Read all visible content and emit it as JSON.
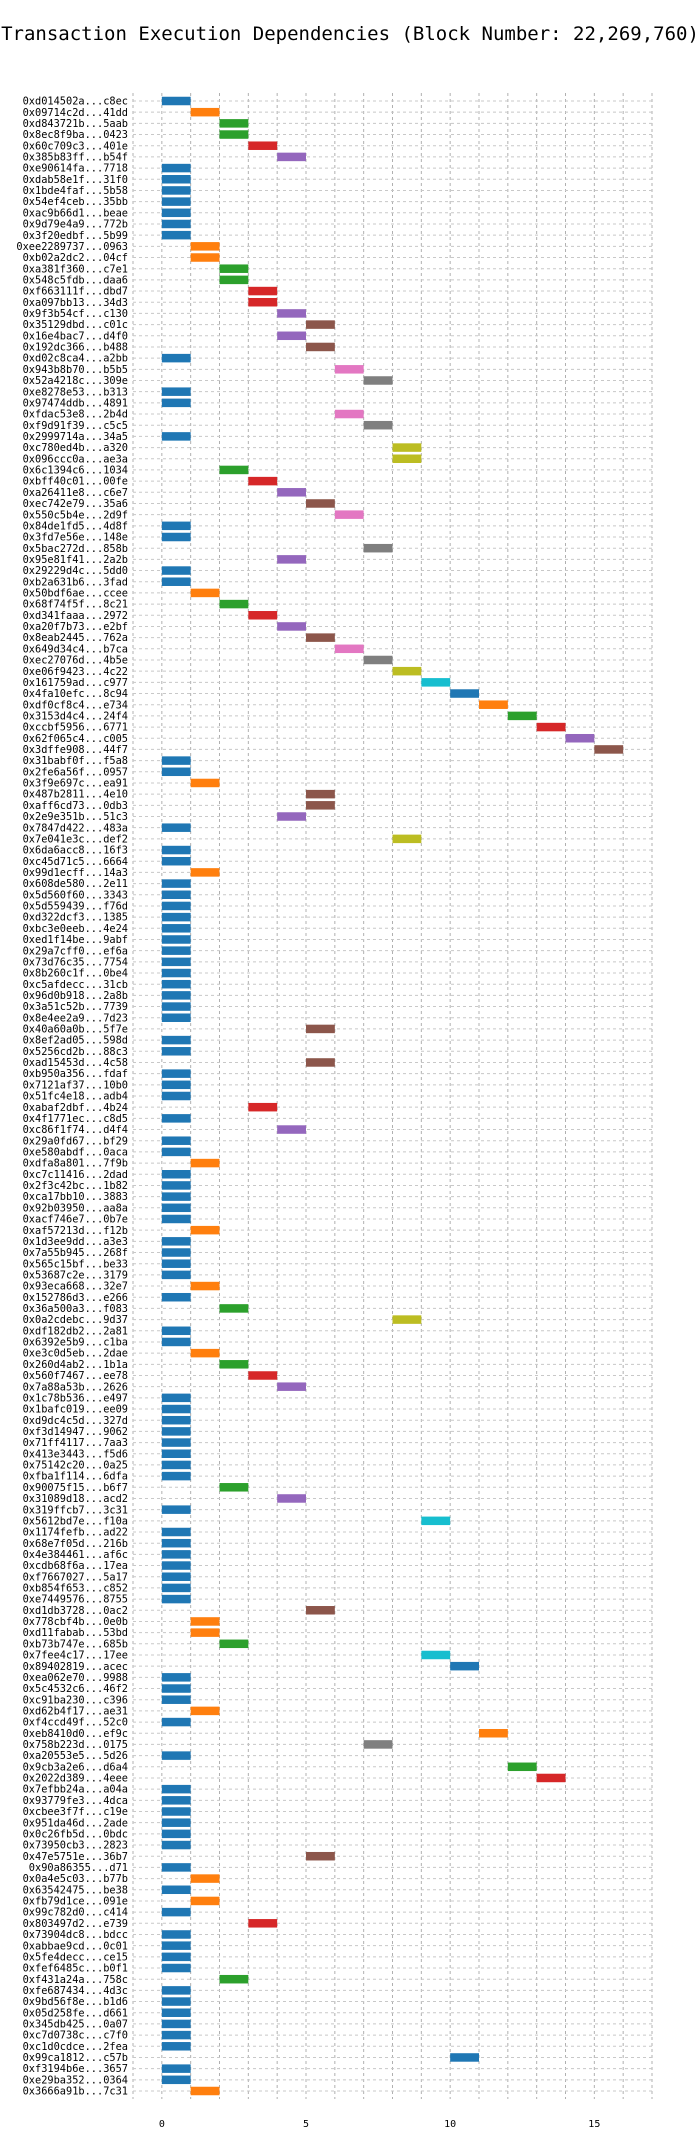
{
  "chart_data": {
    "type": "bar",
    "title": "Transaction Execution Dependencies (Block Number: 22,269,760)",
    "xlabel": "",
    "ylabel": "",
    "xlim": [
      -1,
      17
    ],
    "xticks": [
      0,
      5,
      10,
      15
    ],
    "grid": true,
    "palette": [
      "#1f77b4",
      "#ff7f0e",
      "#2ca02c",
      "#d62728",
      "#9467bd",
      "#8c564b",
      "#e377c2",
      "#7f7f7f",
      "#bcbd22",
      "#17becf"
    ],
    "transactions": [
      {
        "label": "0xd014502a...c8ec",
        "start": 0
      },
      {
        "label": "0x09714c2d...41dd",
        "start": 1
      },
      {
        "label": "0xd843721b...5aab",
        "start": 2
      },
      {
        "label": "0x8ec8f9ba...0423",
        "start": 2
      },
      {
        "label": "0x60c709c3...401e",
        "start": 3
      },
      {
        "label": "0x385b83ff...b54f",
        "start": 4
      },
      {
        "label": "0xe90614fa...7718",
        "start": 0
      },
      {
        "label": "0xdab58e1f...31f0",
        "start": 0
      },
      {
        "label": "0x1bde4faf...5b58",
        "start": 0
      },
      {
        "label": "0x54ef4ceb...35bb",
        "start": 0
      },
      {
        "label": "0xac9b66d1...beae",
        "start": 0
      },
      {
        "label": "0x9d79e4a9...772b",
        "start": 0
      },
      {
        "label": "0x3f20edbf...5b99",
        "start": 0
      },
      {
        "label": "0xee2289737...0963",
        "start": 1
      },
      {
        "label": "0xb02a2dc2...04cf",
        "start": 1
      },
      {
        "label": "0xa381f360...c7e1",
        "start": 2
      },
      {
        "label": "0x548c5fdb...daa6",
        "start": 2
      },
      {
        "label": "0xf663111f...dbd7",
        "start": 3
      },
      {
        "label": "0xa097bb13...34d3",
        "start": 3
      },
      {
        "label": "0x9f3b54cf...c130",
        "start": 4
      },
      {
        "label": "0x35129dbd...c01c",
        "start": 5
      },
      {
        "label": "0x16e4bac7...d4f0",
        "start": 4
      },
      {
        "label": "0x192dc366...b488",
        "start": 5
      },
      {
        "label": "0xd02c8ca4...a2bb",
        "start": 0
      },
      {
        "label": "0x943b8b70...b5b5",
        "start": 6
      },
      {
        "label": "0x52a4218c...309e",
        "start": 7
      },
      {
        "label": "0xe8278e53...b313",
        "start": 0
      },
      {
        "label": "0x97474ddb...4891",
        "start": 0
      },
      {
        "label": "0xfdac53e8...2b4d",
        "start": 6
      },
      {
        "label": "0xf9d91f39...c5c5",
        "start": 7
      },
      {
        "label": "0x2999714a...34a5",
        "start": 0
      },
      {
        "label": "0xc780ed4b...a320",
        "start": 8
      },
      {
        "label": "0x096ccc0a...ae3a",
        "start": 8
      },
      {
        "label": "0x6c1394c6...1034",
        "start": 2
      },
      {
        "label": "0xbff40c01...00fe",
        "start": 3
      },
      {
        "label": "0xa26411e8...c6e7",
        "start": 4
      },
      {
        "label": "0xec742e79...35a6",
        "start": 5
      },
      {
        "label": "0x550c5b4e...2d9f",
        "start": 6
      },
      {
        "label": "0x84de1fd5...4d8f",
        "start": 0
      },
      {
        "label": "0x3fd7e56e...148e",
        "start": 0
      },
      {
        "label": "0x5bac272d...858b",
        "start": 7
      },
      {
        "label": "0x95e81f41...2a2b",
        "start": 4
      },
      {
        "label": "0x29229d4c...5dd0",
        "start": 0
      },
      {
        "label": "0xb2a631b6...3fad",
        "start": 0
      },
      {
        "label": "0x50bdf6ae...ccee",
        "start": 1
      },
      {
        "label": "0x68f74f5f...8c21",
        "start": 2
      },
      {
        "label": "0xd341faaa...2972",
        "start": 3
      },
      {
        "label": "0xa20f7b73...e2bf",
        "start": 4
      },
      {
        "label": "0x8eab2445...762a",
        "start": 5
      },
      {
        "label": "0x649d34c4...b7ca",
        "start": 6
      },
      {
        "label": "0xec27076d...4b5e",
        "start": 7
      },
      {
        "label": "0xe06f9423...4c22",
        "start": 8
      },
      {
        "label": "0x161759ad...c977",
        "start": 9
      },
      {
        "label": "0x4fa10efc...8c94",
        "start": 10
      },
      {
        "label": "0xdf0cf8c4...e734",
        "start": 11
      },
      {
        "label": "0x3153d4c4...24f4",
        "start": 12
      },
      {
        "label": "0xccbf5956...6771",
        "start": 13
      },
      {
        "label": "0x62f065c4...c005",
        "start": 14
      },
      {
        "label": "0x3dffe908...44f7",
        "start": 15
      },
      {
        "label": "0x31babf0f...f5a8",
        "start": 0
      },
      {
        "label": "0x2fe6a56f...0957",
        "start": 0
      },
      {
        "label": "0x3f9e697c...ea91",
        "start": 1
      },
      {
        "label": "0x487b2811...4e10",
        "start": 5
      },
      {
        "label": "0xaff6cd73...0db3",
        "start": 5
      },
      {
        "label": "0x2e9e351b...51c3",
        "start": 4
      },
      {
        "label": "0x7847d422...483a",
        "start": 0
      },
      {
        "label": "0x7e041e3c...def2",
        "start": 8
      },
      {
        "label": "0x6da6acc8...16f3",
        "start": 0
      },
      {
        "label": "0xc45d71c5...6664",
        "start": 0
      },
      {
        "label": "0x99d1ecff...14a3",
        "start": 1
      },
      {
        "label": "0x608de580...2e11",
        "start": 0
      },
      {
        "label": "0x5d560f60...3343",
        "start": 0
      },
      {
        "label": "0x5d559439...f76d",
        "start": 0
      },
      {
        "label": "0xd322dcf3...1385",
        "start": 0
      },
      {
        "label": "0xbc3e0eeb...4e24",
        "start": 0
      },
      {
        "label": "0xed1f14be...9abf",
        "start": 0
      },
      {
        "label": "0x29a7cff0...ef6a",
        "start": 0
      },
      {
        "label": "0x73d76c35...7754",
        "start": 0
      },
      {
        "label": "0x8b260c1f...0be4",
        "start": 0
      },
      {
        "label": "0xc5afdecc...31cb",
        "start": 0
      },
      {
        "label": "0x96d0b918...2a8b",
        "start": 0
      },
      {
        "label": "0x3a51c52b...7739",
        "start": 0
      },
      {
        "label": "0x8e4ee2a9...7d23",
        "start": 0
      },
      {
        "label": "0x40a60a0b...5f7e",
        "start": 5
      },
      {
        "label": "0x8ef2ad05...598d",
        "start": 0
      },
      {
        "label": "0x5256cd2b...88c3",
        "start": 0
      },
      {
        "label": "0xad15453d...4c58",
        "start": 5
      },
      {
        "label": "0xb950a356...fdaf",
        "start": 0
      },
      {
        "label": "0x7121af37...10b0",
        "start": 0
      },
      {
        "label": "0x51fc4e18...adb4",
        "start": 0
      },
      {
        "label": "0xabaf2dbf...4b24",
        "start": 3
      },
      {
        "label": "0x4f1771ec...c8d5",
        "start": 0
      },
      {
        "label": "0xc86f1f74...d4f4",
        "start": 4
      },
      {
        "label": "0x29a0fd67...bf29",
        "start": 0
      },
      {
        "label": "0xe580abdf...0aca",
        "start": 0
      },
      {
        "label": "0xdfa8a801...7f9b",
        "start": 1
      },
      {
        "label": "0xc7c11416...2dad",
        "start": 0
      },
      {
        "label": "0x2f3c42bc...1b82",
        "start": 0
      },
      {
        "label": "0xca17bb10...3883",
        "start": 0
      },
      {
        "label": "0x92b03950...aa8a",
        "start": 0
      },
      {
        "label": "0xacf746e7...0b7e",
        "start": 0
      },
      {
        "label": "0xaf57213d...f12b",
        "start": 1
      },
      {
        "label": "0x1d3ee9dd...a3e3",
        "start": 0
      },
      {
        "label": "0x7a55b945...268f",
        "start": 0
      },
      {
        "label": "0x565c15bf...be33",
        "start": 0
      },
      {
        "label": "0x53687c2e...3179",
        "start": 0
      },
      {
        "label": "0x93eca668...32e7",
        "start": 1
      },
      {
        "label": "0x152786d3...e266",
        "start": 0
      },
      {
        "label": "0x36a500a3...f083",
        "start": 2
      },
      {
        "label": "0x0a2cdebc...9d37",
        "start": 8
      },
      {
        "label": "0xdf182db2...2a81",
        "start": 0
      },
      {
        "label": "0x6392e5b9...c1ba",
        "start": 0
      },
      {
        "label": "0xe3c0d5eb...2dae",
        "start": 1
      },
      {
        "label": "0x260d4ab2...1b1a",
        "start": 2
      },
      {
        "label": "0x560f7467...ee78",
        "start": 3
      },
      {
        "label": "0x7a88a53b...2626",
        "start": 4
      },
      {
        "label": "0x1c78b536...e497",
        "start": 0
      },
      {
        "label": "0x1bafc019...ee09",
        "start": 0
      },
      {
        "label": "0xd9dc4c5d...327d",
        "start": 0
      },
      {
        "label": "0xf3d14947...9062",
        "start": 0
      },
      {
        "label": "0x71ff4117...7aa3",
        "start": 0
      },
      {
        "label": "0x413e3443...f5d6",
        "start": 0
      },
      {
        "label": "0x75142c20...0a25",
        "start": 0
      },
      {
        "label": "0xfba1f114...6dfa",
        "start": 0
      },
      {
        "label": "0x90075f15...b6f7",
        "start": 2
      },
      {
        "label": "0x31089d18...acd2",
        "start": 4
      },
      {
        "label": "0x319ffcb7...3c31",
        "start": 0
      },
      {
        "label": "0x5612bd7e...f10a",
        "start": 9
      },
      {
        "label": "0x1174fefb...ad22",
        "start": 0
      },
      {
        "label": "0x68e7f05d...216b",
        "start": 0
      },
      {
        "label": "0x4e384461...af6c",
        "start": 0
      },
      {
        "label": "0xcdb68f6a...17ea",
        "start": 0
      },
      {
        "label": "0xf7667027...5a17",
        "start": 0
      },
      {
        "label": "0xb854f653...c852",
        "start": 0
      },
      {
        "label": "0xe7449576...8755",
        "start": 0
      },
      {
        "label": "0xd1db3728...0ac2",
        "start": 5
      },
      {
        "label": "0x778cbf4b...0e0b",
        "start": 1
      },
      {
        "label": "0xd11fabab...53bd",
        "start": 1
      },
      {
        "label": "0xb73b747e...685b",
        "start": 2
      },
      {
        "label": "0x7fee4c17...17ee",
        "start": 9
      },
      {
        "label": "0x89402819...acec",
        "start": 10
      },
      {
        "label": "0xea062e70...9988",
        "start": 0
      },
      {
        "label": "0x5c4532c6...46f2",
        "start": 0
      },
      {
        "label": "0xc91ba230...c396",
        "start": 0
      },
      {
        "label": "0xd62b4f17...ae31",
        "start": 1
      },
      {
        "label": "0xf4ccd49f...52c0",
        "start": 0
      },
      {
        "label": "0xeb8410d0...ef9c",
        "start": 11
      },
      {
        "label": "0x758b223d...0175",
        "start": 7
      },
      {
        "label": "0xa20553e5...5d26",
        "start": 0
      },
      {
        "label": "0x9cb3a2e6...d6a4",
        "start": 12
      },
      {
        "label": "0x2022d389...4eee",
        "start": 13
      },
      {
        "label": "0x7efbb24a...a04a",
        "start": 0
      },
      {
        "label": "0x93779fe3...4dca",
        "start": 0
      },
      {
        "label": "0xcbee3f7f...c19e",
        "start": 0
      },
      {
        "label": "0x951da46d...2ade",
        "start": 0
      },
      {
        "label": "0x0c26fb5d...0bdc",
        "start": 0
      },
      {
        "label": "0x73950cb3...2823",
        "start": 0
      },
      {
        "label": "0x47e5751e...36b7",
        "start": 5
      },
      {
        "label": "0x90a86355...d71",
        "start": 0
      },
      {
        "label": "0x0a4e5c03...b77b",
        "start": 1
      },
      {
        "label": "0x63542475...be38",
        "start": 0
      },
      {
        "label": "0xfb79d1ce...091e",
        "start": 1
      },
      {
        "label": "0x99c782d0...c414",
        "start": 0
      },
      {
        "label": "0x803497d2...e739",
        "start": 3
      },
      {
        "label": "0x73904dc8...bdcc",
        "start": 0
      },
      {
        "label": "0xabbae9cd...0c01",
        "start": 0
      },
      {
        "label": "0x5fe4decc...ce15",
        "start": 0
      },
      {
        "label": "0xfef6485c...b0f1",
        "start": 0
      },
      {
        "label": "0xf431a24a...758c",
        "start": 2
      },
      {
        "label": "0xfe687434...4d3c",
        "start": 0
      },
      {
        "label": "0x9bd56f8e...b1d6",
        "start": 0
      },
      {
        "label": "0x05d258fe...d661",
        "start": 0
      },
      {
        "label": "0x345db425...0a07",
        "start": 0
      },
      {
        "label": "0xc7d0738c...c7f0",
        "start": 0
      },
      {
        "label": "0xc1d0cdce...2fea",
        "start": 0
      },
      {
        "label": "0x99ca1812...c57b",
        "start": 10
      },
      {
        "label": "0xf3194b6e...3657",
        "start": 0
      },
      {
        "label": "0xe29ba352...0364",
        "start": 0
      },
      {
        "label": "0x3666a91b...7c31",
        "start": 1
      }
    ]
  }
}
